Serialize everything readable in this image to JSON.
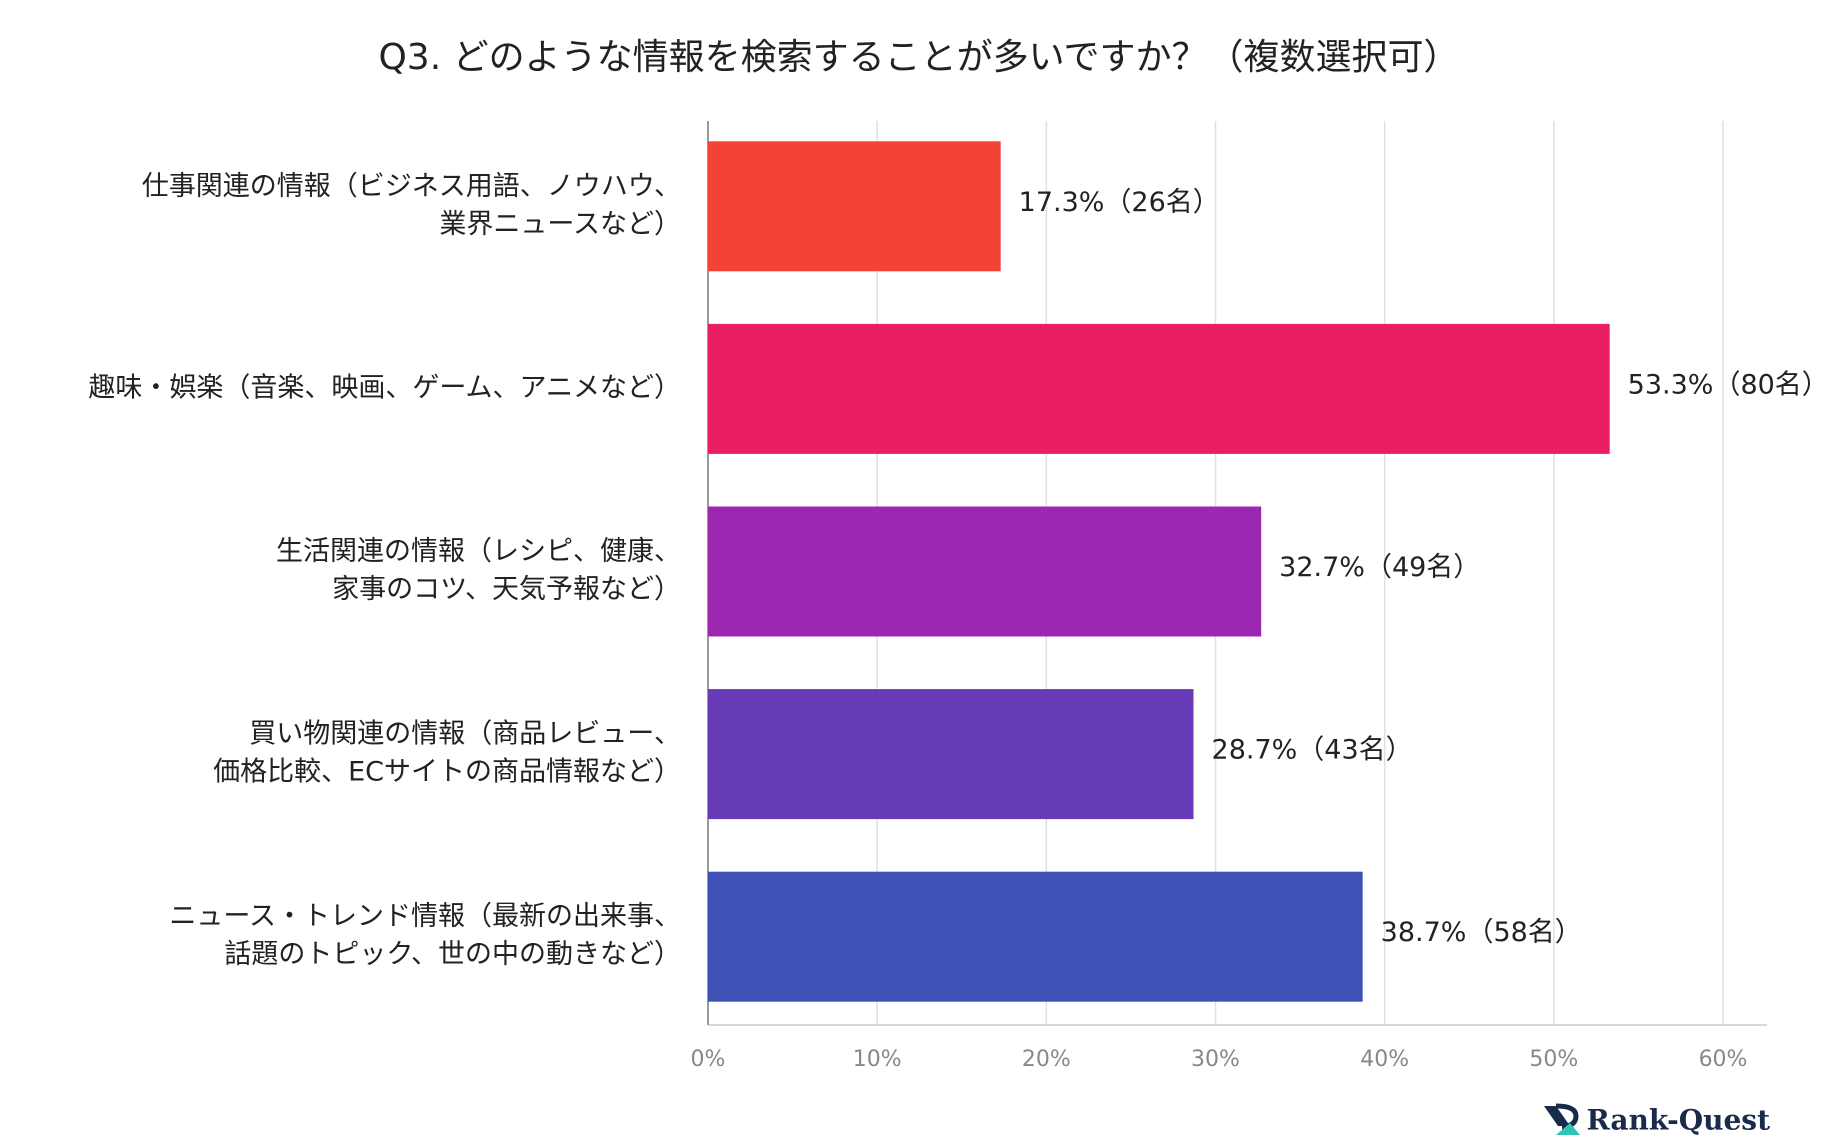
{
  "chart_data": {
    "type": "bar",
    "orientation": "horizontal",
    "title": "Q3. どのような情報を検索することが多いですか？（複数選択可）",
    "categories": [
      [
        "仕事関連の情報（ビジネス用語、ノウハウ、",
        "業界ニュースなど）"
      ],
      [
        "趣味・娯楽（音楽、映画、ゲーム、アニメなど）"
      ],
      [
        "生活関連の情報（レシピ、健康、",
        "家事のコツ、天気予報など）"
      ],
      [
        "買い物関連の情報（商品レビュー、",
        "価格比較、ECサイトの商品情報など）"
      ],
      [
        "ニュース・トレンド情報（最新の出来事、",
        "話題のトピック、世の中の動きなど）"
      ]
    ],
    "values": [
      17.3,
      53.3,
      32.7,
      28.7,
      38.7
    ],
    "value_labels": [
      "17.3%（26名）",
      "53.3%（80名）",
      "32.7%（49名）",
      "28.7%（43名）",
      "38.7%（58名）"
    ],
    "colors": [
      "#f44336",
      "#e91e63",
      "#9c27b0",
      "#673ab7",
      "#3f51b5"
    ],
    "xlim": [
      0,
      62.6
    ],
    "xticks": [
      {
        "value": 0,
        "label": "0%"
      },
      {
        "value": 10,
        "label": "10%"
      },
      {
        "value": 20,
        "label": "20%"
      },
      {
        "value": 30,
        "label": "30%"
      },
      {
        "value": 40,
        "label": "40%"
      },
      {
        "value": 50,
        "label": "50%"
      },
      {
        "value": 60,
        "label": "60%"
      }
    ],
    "grid": true,
    "logo": "Rank-Quest"
  }
}
